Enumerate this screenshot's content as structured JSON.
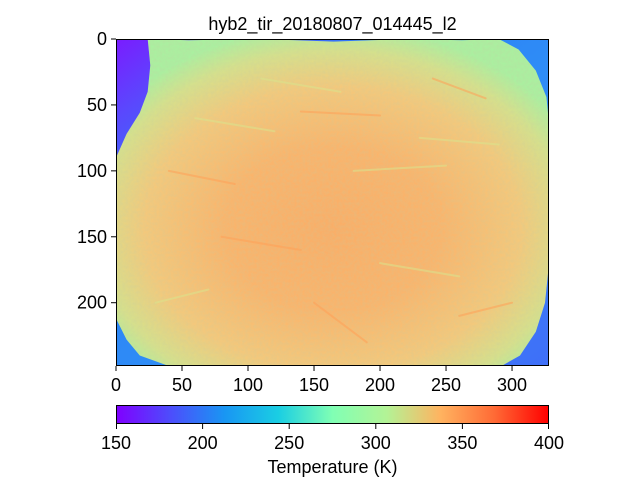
{
  "chart_data": {
    "type": "heatmap",
    "title": "hyb2_tir_20180807_014445_l2",
    "xlabel": "",
    "ylabel": "",
    "image_shape": {
      "rows": 248,
      "cols": 328
    },
    "xlim": [
      0,
      328
    ],
    "ylim": [
      248,
      0
    ],
    "x_ticks": [
      0,
      50,
      100,
      150,
      200,
      250,
      300
    ],
    "y_ticks": [
      0,
      50,
      100,
      150,
      200
    ],
    "x_tick_labels": [
      "0",
      "50",
      "100",
      "150",
      "200",
      "250",
      "300"
    ],
    "y_tick_labels": [
      "0",
      "50",
      "100",
      "150",
      "200"
    ],
    "colormap": "rainbow",
    "colorbar": {
      "orientation": "horizontal",
      "label": "Temperature (K)",
      "vmin": 150,
      "vmax": 400,
      "ticks": [
        150,
        200,
        250,
        300,
        350,
        400
      ],
      "tick_labels": [
        "150",
        "200",
        "250",
        "300",
        "350",
        "400"
      ]
    },
    "regions": {
      "background_temperature_range_K": [
        150,
        215
      ],
      "asteroid_surface_temperature_range_K": [
        300,
        355
      ],
      "limb_temperature_K": 300,
      "center_temperature_K": 340
    }
  }
}
